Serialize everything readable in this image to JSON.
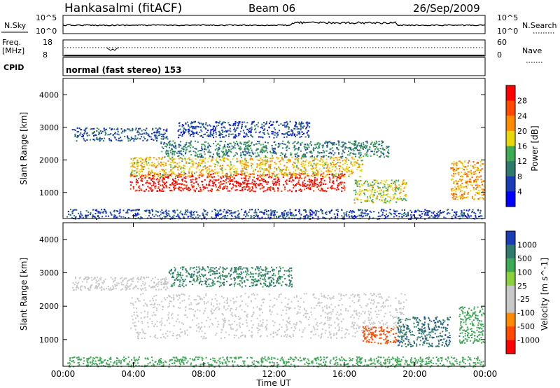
{
  "header": {
    "station": "Hankasalmi (fitACF)",
    "beam": "Beam 06",
    "date": "26/Sep/2009"
  },
  "strips": {
    "nsky_label": "N.Sky",
    "nsky_top": "10^5",
    "nsky_bottom": "10^0",
    "nsearch_label": "N.Search",
    "nsearch_top": "10^5",
    "nsearch_bottom": "10^0",
    "freq_label_1": "Freq.",
    "freq_label_2": "[MHz]",
    "freq_top": "18",
    "freq_bottom": "8",
    "nave_label": "Nave",
    "nave_top": "60",
    "nave_bottom": "0",
    "cpid_label": "CPID",
    "mode_text": "normal (fast stereo) 153"
  },
  "colors": {
    "power_scale": [
      "#0000ff",
      "#1a3cb4",
      "#2f7a6a",
      "#3faa55",
      "#e8d80a",
      "#ff8c00",
      "#ff4a00",
      "#ff0000"
    ],
    "velocity_scale": [
      "#1a3cb4",
      "#2f7a6a",
      "#3faa55",
      "#8ccf40",
      "#c8c8c8",
      "#c8c8c8",
      "#ff8c00",
      "#ff4a00",
      "#ff0000"
    ],
    "gray_scatter": "#c8c8c8"
  },
  "chart_data": [
    {
      "type": "heatmap",
      "title": "",
      "xlabel": "Time UT",
      "ylabel": "Slant Range [km]",
      "x_range": [
        "00:00",
        "00:00"
      ],
      "x_ticks": [
        "00:00",
        "04:00",
        "08:00",
        "12:00",
        "16:00",
        "20:00",
        "00:00"
      ],
      "y_range_km": [
        200,
        4500
      ],
      "y_ticks": [
        1000,
        2000,
        3000,
        4000
      ],
      "colorbar": {
        "label": "Power [dB]",
        "ticks": [
          4,
          8,
          12,
          16,
          20,
          24,
          28
        ],
        "range": [
          0,
          30
        ]
      },
      "scatter_bands": [
        {
          "t_start": 0.2,
          "t_end": 24.0,
          "r_low": 200,
          "r_high": 500,
          "value": 6
        },
        {
          "t_start": 0.5,
          "t_end": 6.0,
          "r_low": 2600,
          "r_high": 3000,
          "value": 7
        },
        {
          "t_start": 3.8,
          "t_end": 16.0,
          "r_low": 1050,
          "r_high": 1600,
          "value": 28
        },
        {
          "t_start": 3.8,
          "t_end": 17.0,
          "r_low": 1500,
          "r_high": 2100,
          "value": 18
        },
        {
          "t_start": 5.5,
          "t_end": 18.5,
          "r_low": 2100,
          "r_high": 2600,
          "value": 10
        },
        {
          "t_start": 6.5,
          "t_end": 14.0,
          "r_low": 2700,
          "r_high": 3200,
          "value": 6
        },
        {
          "t_start": 16.5,
          "t_end": 19.5,
          "r_low": 700,
          "r_high": 1400,
          "value": 16
        },
        {
          "t_start": 22.0,
          "t_end": 24.0,
          "r_low": 800,
          "r_high": 2000,
          "value": 20
        }
      ]
    },
    {
      "type": "heatmap",
      "title": "",
      "xlabel": "Time UT",
      "ylabel": "Slant Range [km]",
      "x_range": [
        "00:00",
        "00:00"
      ],
      "x_ticks": [
        "00:00",
        "04:00",
        "08:00",
        "12:00",
        "16:00",
        "20:00",
        "00:00"
      ],
      "y_range_km": [
        200,
        4500
      ],
      "y_ticks": [
        1000,
        2000,
        3000,
        4000
      ],
      "colorbar": {
        "label": "Velocity [m s^-1]",
        "ticks": [
          1000,
          500,
          100,
          25,
          -25,
          -100,
          -500,
          -1000
        ],
        "range": [
          -1000,
          1000
        ]
      },
      "scatter_bands": [
        {
          "t_start": 0.2,
          "t_end": 24.0,
          "r_low": 200,
          "r_high": 500,
          "value": 120
        },
        {
          "t_start": 0.5,
          "t_end": 6.0,
          "r_low": 2500,
          "r_high": 2900,
          "value": 0
        },
        {
          "t_start": 3.8,
          "t_end": 19.5,
          "r_low": 1050,
          "r_high": 2400,
          "value": 0
        },
        {
          "t_start": 6.0,
          "t_end": 13.0,
          "r_low": 2600,
          "r_high": 3200,
          "value": 300
        },
        {
          "t_start": 17.0,
          "t_end": 19.0,
          "r_low": 900,
          "r_high": 1400,
          "value": -300
        },
        {
          "t_start": 19.0,
          "t_end": 22.0,
          "r_low": 800,
          "r_high": 1700,
          "value": 500
        },
        {
          "t_start": 22.5,
          "t_end": 24.0,
          "r_low": 900,
          "r_high": 2000,
          "value": 200
        }
      ]
    }
  ]
}
